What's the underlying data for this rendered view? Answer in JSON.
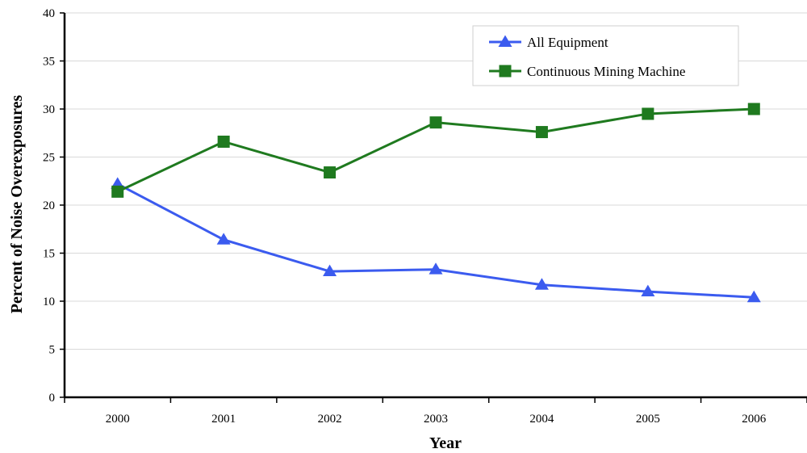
{
  "chart_data": {
    "type": "line",
    "title": "",
    "xlabel": "Year",
    "ylabel": "Percent of Noise Overexposures",
    "categories": [
      "2000",
      "2001",
      "2002",
      "2003",
      "2004",
      "2005",
      "2006"
    ],
    "ylim": [
      0,
      40
    ],
    "yticks": [
      0,
      5,
      10,
      15,
      20,
      25,
      30,
      35,
      40
    ],
    "grid": true,
    "legend_position": "top-right",
    "series": [
      {
        "name": "All Equipment",
        "values": [
          22.2,
          16.4,
          13.1,
          13.3,
          11.7,
          11.0,
          10.4
        ],
        "color": "#3b5bef",
        "marker": "triangle"
      },
      {
        "name": "Continuous Mining Machine",
        "values": [
          21.4,
          26.6,
          23.4,
          28.6,
          27.6,
          29.5,
          30.0
        ],
        "color": "#1f7a1f",
        "marker": "square"
      }
    ]
  }
}
